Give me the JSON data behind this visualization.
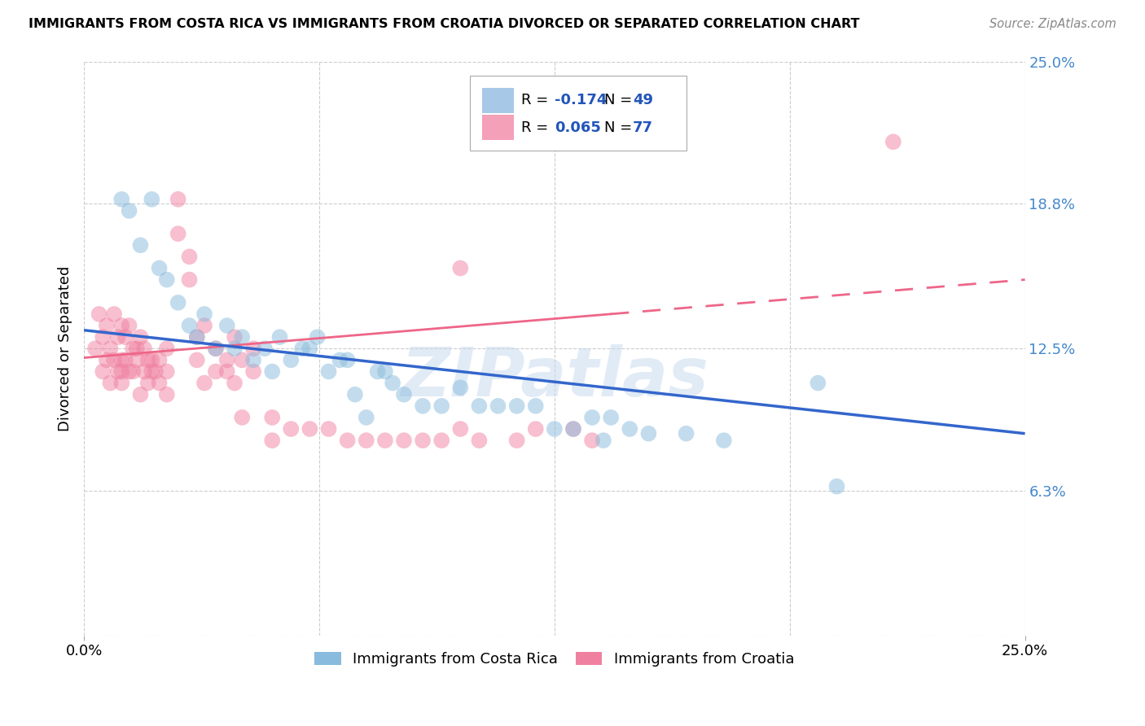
{
  "title": "IMMIGRANTS FROM COSTA RICA VS IMMIGRANTS FROM CROATIA DIVORCED OR SEPARATED CORRELATION CHART",
  "source": "Source: ZipAtlas.com",
  "ylabel": "Divorced or Separated",
  "xmin": 0.0,
  "xmax": 0.25,
  "ymin": 0.0,
  "ymax": 0.25,
  "ytick_positions": [
    0.0,
    0.063,
    0.125,
    0.188,
    0.25
  ],
  "ytick_labels": [
    "",
    "6.3%",
    "12.5%",
    "18.8%",
    "25.0%"
  ],
  "xtick_positions": [
    0.0,
    0.25
  ],
  "xtick_labels": [
    "0.0%",
    "25.0%"
  ],
  "costa_rica_color": "#88bbdd",
  "croatia_color": "#f080a0",
  "costa_rica_line_color": "#3366cc",
  "croatia_line_color": "#ee6688",
  "background_color": "#ffffff",
  "grid_color": "#cccccc",
  "right_axis_color": "#4488cc",
  "watermark": "ZIPatlas",
  "legend_R1": "-0.174",
  "legend_N1": "49",
  "legend_R2": "0.065",
  "legend_N2": "77",
  "legend_label1": "Immigrants from Costa Rica",
  "legend_label2": "Immigrants from Croatia",
  "cr_line_x0": 0.0,
  "cr_line_y0": 0.133,
  "cr_line_x1": 0.25,
  "cr_line_y1": 0.088,
  "cro_line_x0": 0.0,
  "cro_line_y0": 0.121,
  "cro_line_x1": 0.25,
  "cro_line_y1": 0.155
}
